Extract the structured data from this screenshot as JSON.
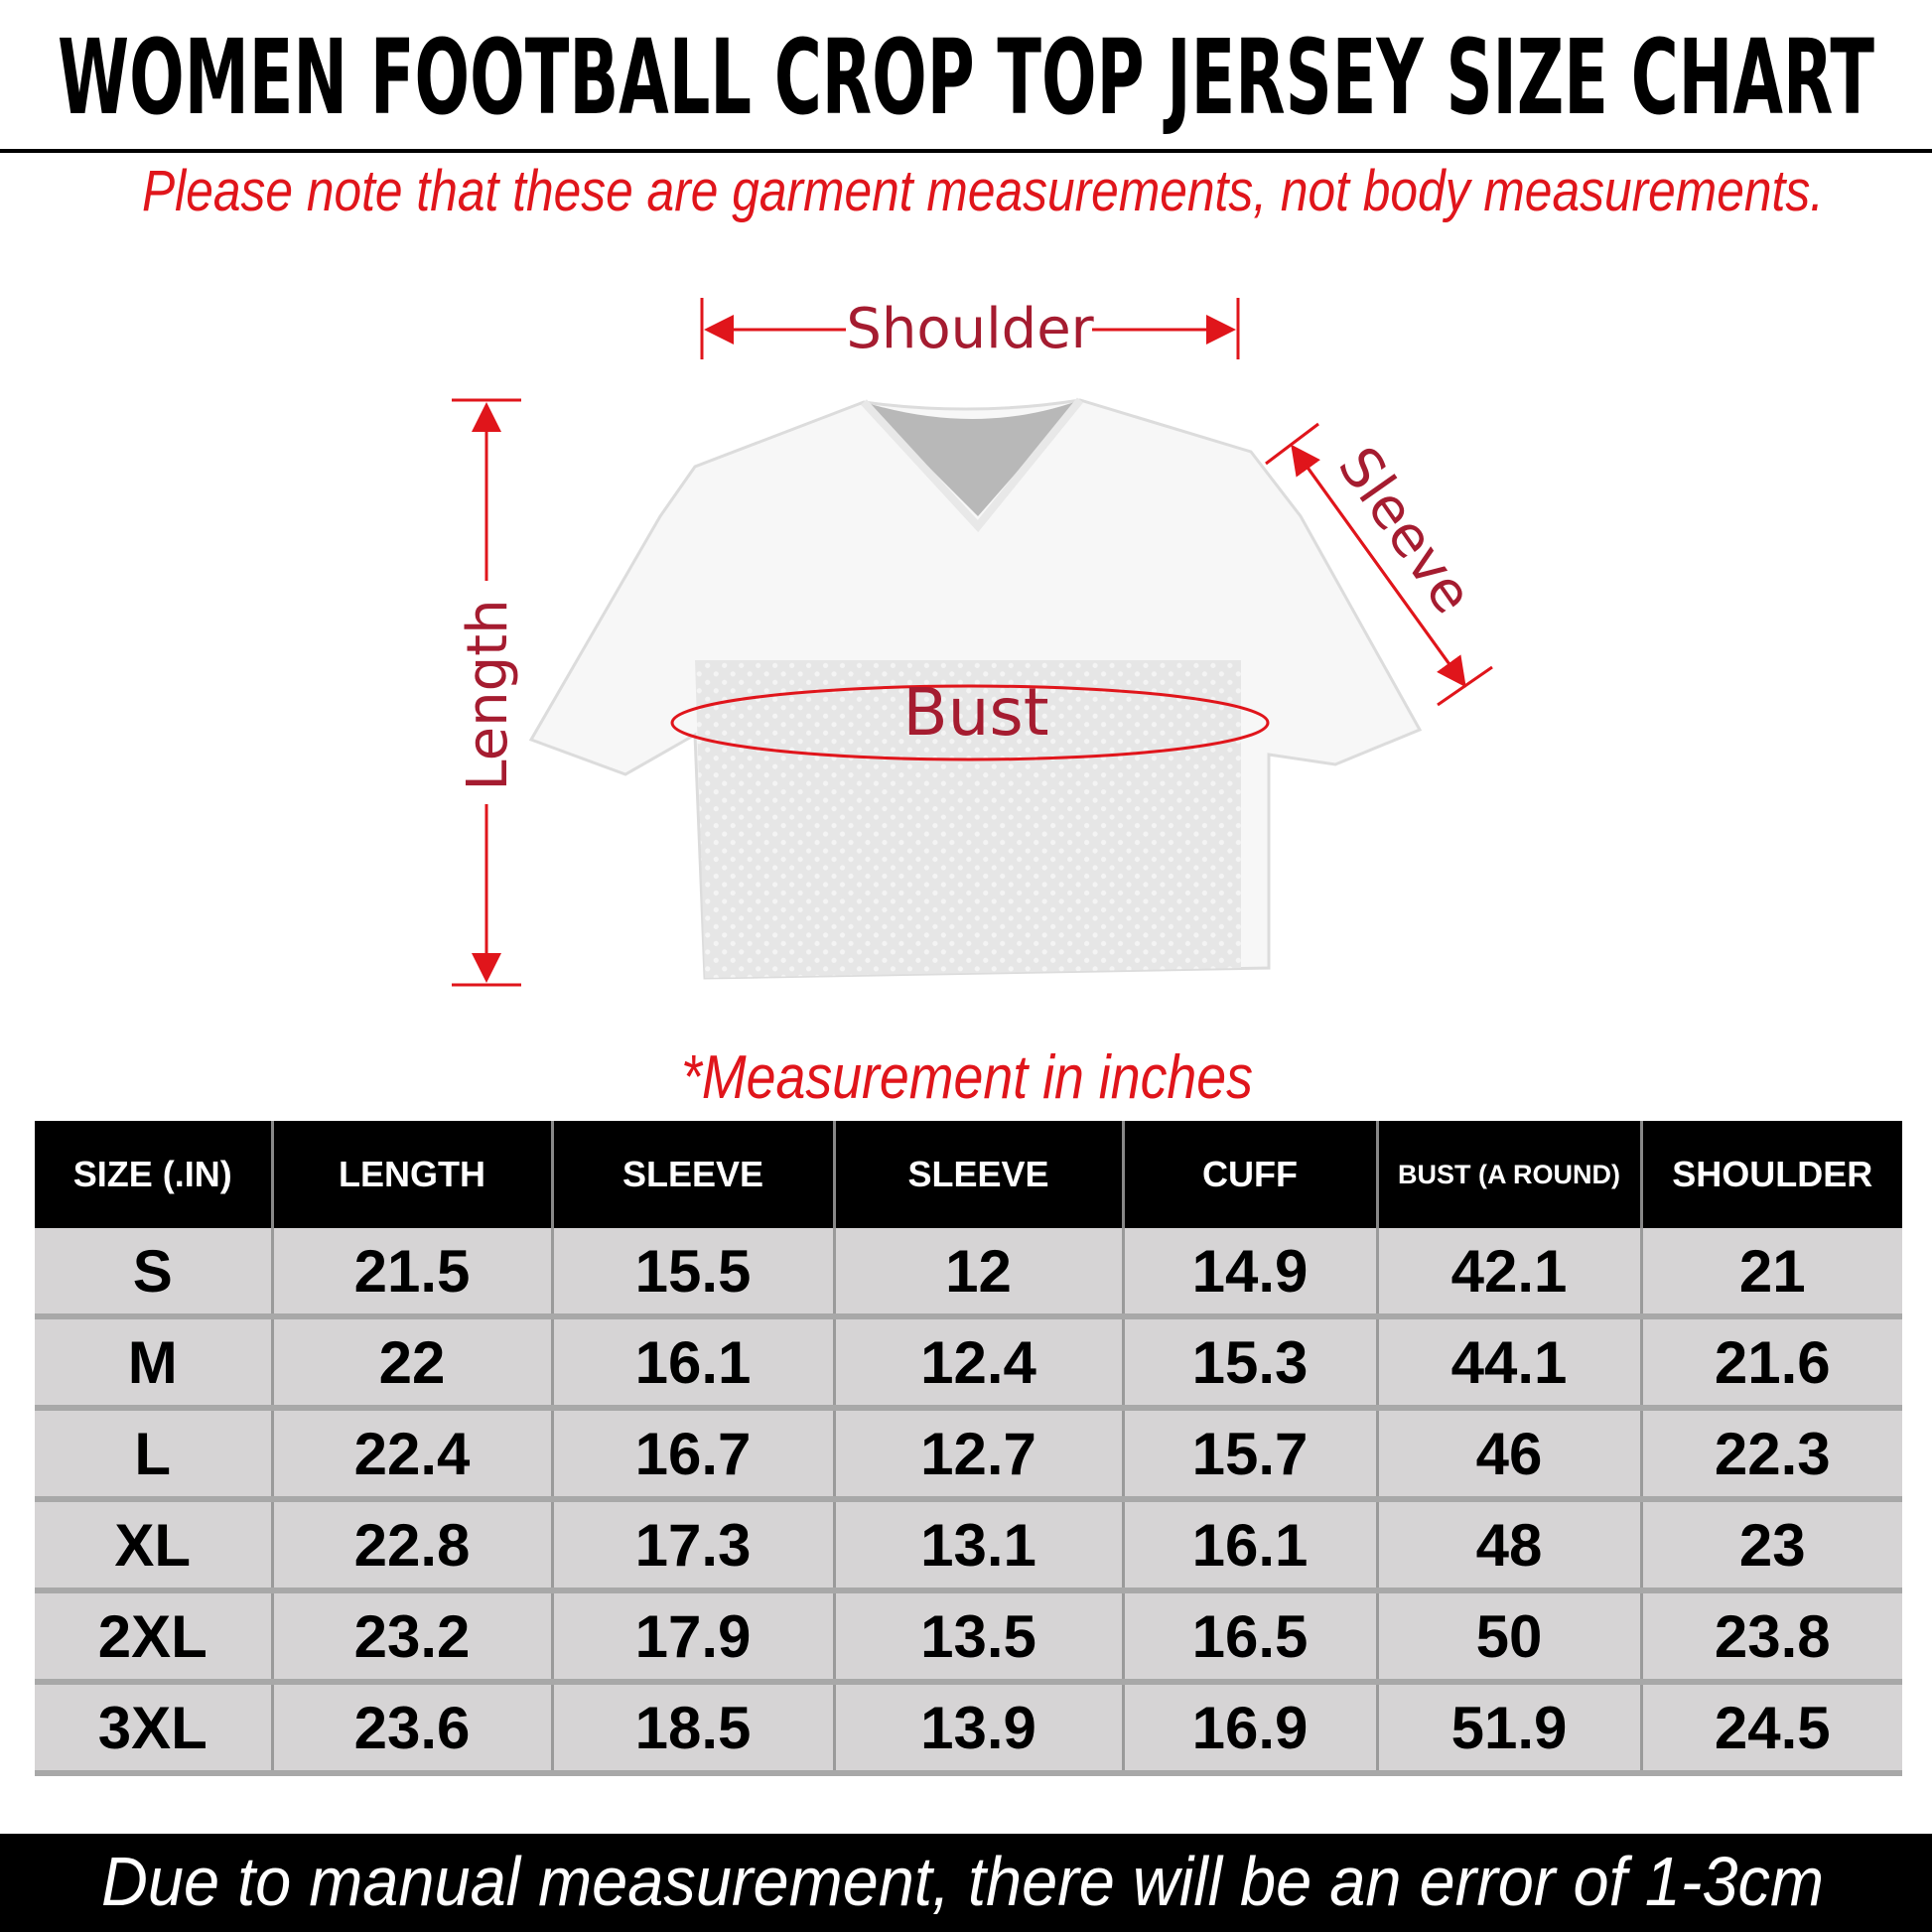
{
  "title": "WOMEN FOOTBALL CROP TOP JERSEY SIZE CHART",
  "note": "Please note that these are garment measurements, not body measurements.",
  "diagram": {
    "labels": {
      "shoulder": "Shoulder",
      "length": "Length",
      "sleeve": "Sleeve",
      "bust": "Bust"
    },
    "colors": {
      "arrow": "#e0151b",
      "label": "#a51c30"
    }
  },
  "unit_note": "*Measurement in inches",
  "table": {
    "headers": [
      "SIZE (.IN)",
      "LENGTH",
      "SLEEVE",
      "SLEEVE",
      "CUFF",
      "BUST (A ROUND)",
      "SHOULDER"
    ],
    "rows": [
      [
        "S",
        "21.5",
        "15.5",
        "12",
        "14.9",
        "42.1",
        "21"
      ],
      [
        "M",
        "22",
        "16.1",
        "12.4",
        "15.3",
        "44.1",
        "21.6"
      ],
      [
        "L",
        "22.4",
        "16.7",
        "12.7",
        "15.7",
        "46",
        "22.3"
      ],
      [
        "XL",
        "22.8",
        "17.3",
        "13.1",
        "16.1",
        "48",
        "23"
      ],
      [
        "2XL",
        "23.2",
        "17.9",
        "13.5",
        "16.5",
        "50",
        "23.8"
      ],
      [
        "3XL",
        "23.6",
        "18.5",
        "13.9",
        "16.9",
        "51.9",
        "24.5"
      ]
    ]
  },
  "footer": "Due to manual measurement, there will be an error of 1-3cm"
}
